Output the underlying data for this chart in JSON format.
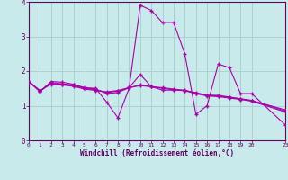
{
  "xlabel": "Windchill (Refroidissement éolien,°C)",
  "bg_color": "#c8eaea",
  "line_color": "#aa00aa",
  "grid_color": "#aacccc",
  "xlim": [
    0,
    23
  ],
  "ylim": [
    0,
    4
  ],
  "xticks": [
    0,
    1,
    2,
    3,
    4,
    5,
    6,
    7,
    8,
    9,
    10,
    11,
    12,
    13,
    14,
    15,
    16,
    17,
    18,
    19,
    20,
    23
  ],
  "yticks": [
    0,
    1,
    2,
    3,
    4
  ],
  "series": [
    [
      1.7,
      1.4,
      1.7,
      1.68,
      1.62,
      1.52,
      1.5,
      1.1,
      0.65,
      1.5,
      3.9,
      3.75,
      3.4,
      3.4,
      2.5,
      0.75,
      1.0,
      2.2,
      2.1,
      1.35,
      1.35,
      0.45
    ],
    [
      1.7,
      1.42,
      1.67,
      1.63,
      1.6,
      1.52,
      1.48,
      1.35,
      1.38,
      1.52,
      1.9,
      1.55,
      1.45,
      1.45,
      1.45,
      1.35,
      1.3,
      1.3,
      1.25,
      1.2,
      1.15,
      0.85
    ],
    [
      1.7,
      1.42,
      1.64,
      1.62,
      1.58,
      1.5,
      1.46,
      1.38,
      1.42,
      1.52,
      1.6,
      1.55,
      1.5,
      1.46,
      1.43,
      1.35,
      1.28,
      1.26,
      1.22,
      1.18,
      1.13,
      0.82
    ],
    [
      1.7,
      1.44,
      1.62,
      1.6,
      1.56,
      1.48,
      1.44,
      1.4,
      1.44,
      1.52,
      1.58,
      1.55,
      1.52,
      1.48,
      1.44,
      1.38,
      1.3,
      1.28,
      1.24,
      1.2,
      1.15,
      0.88
    ]
  ],
  "series_x": [
    0,
    1,
    2,
    3,
    4,
    5,
    6,
    7,
    8,
    9,
    10,
    11,
    12,
    13,
    14,
    15,
    16,
    17,
    18,
    19,
    20,
    23
  ]
}
